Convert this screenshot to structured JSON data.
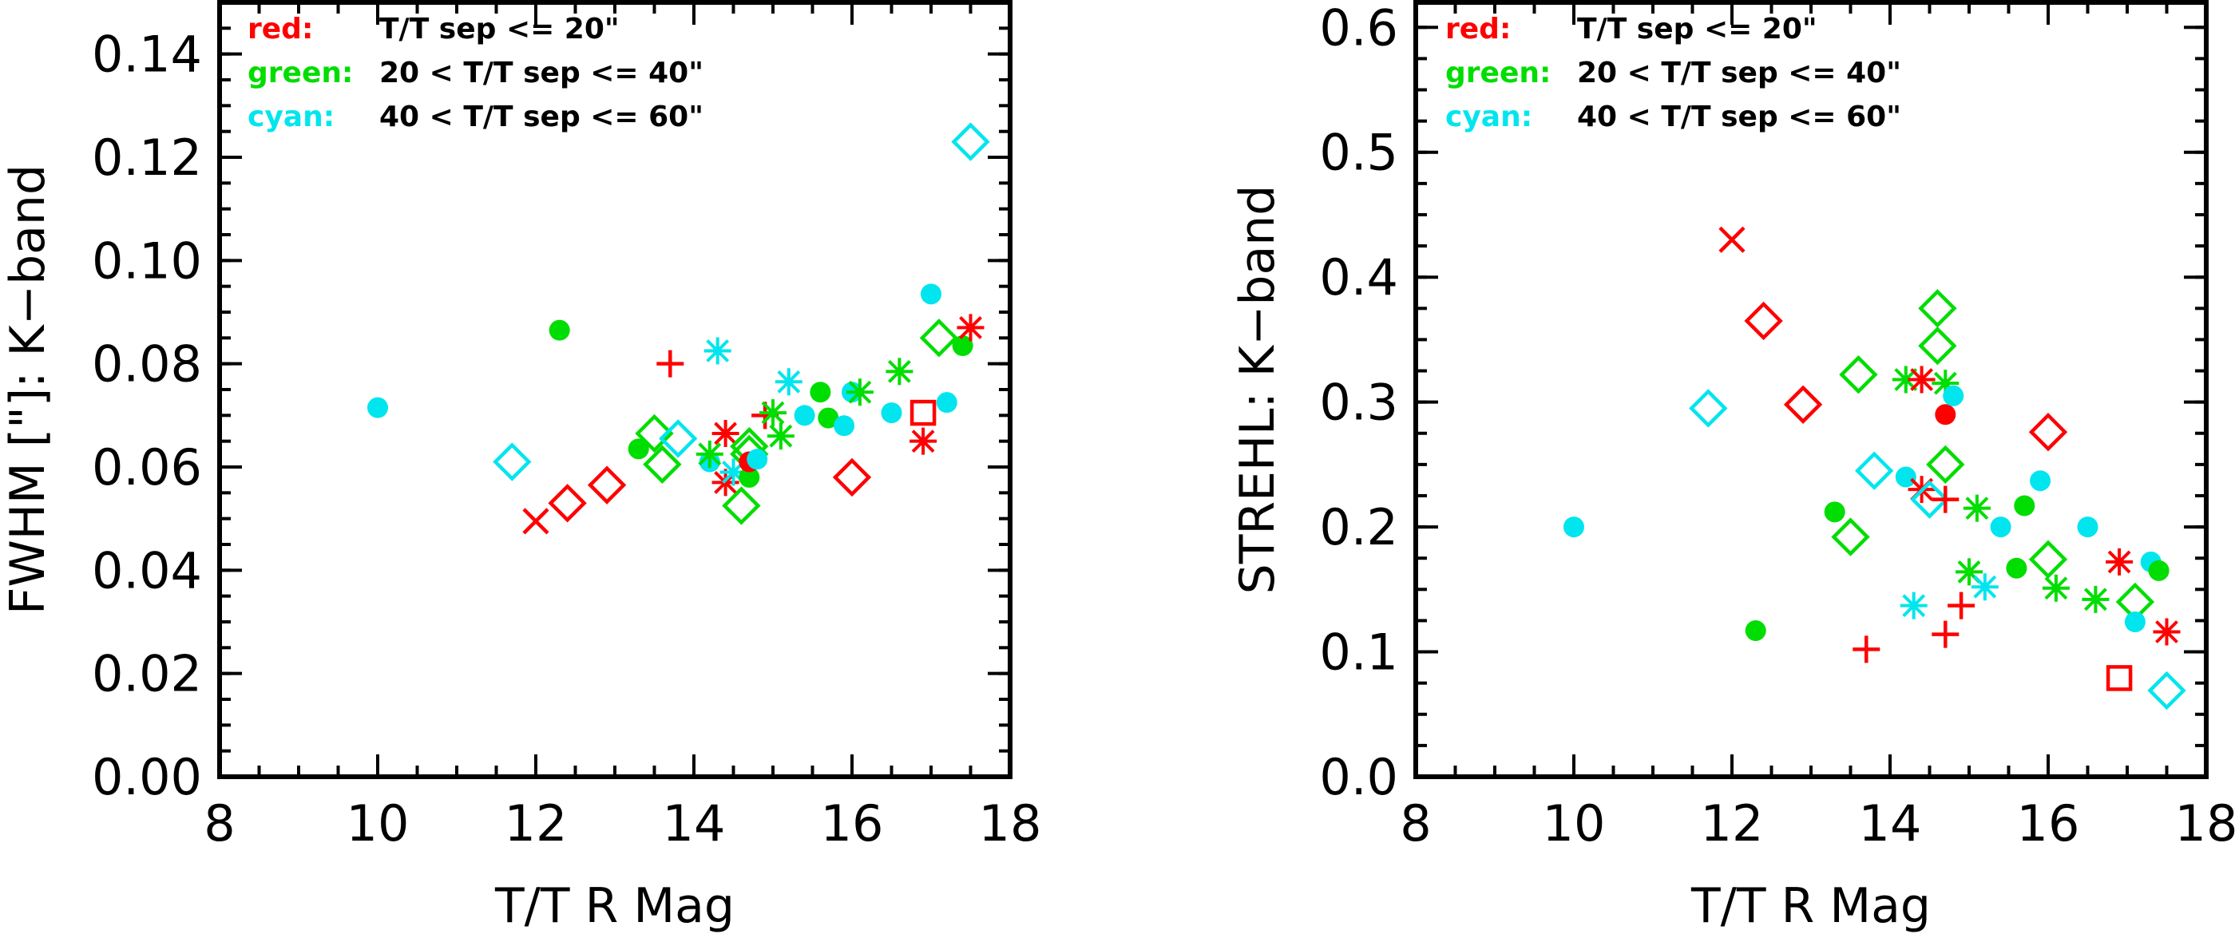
{
  "colors": {
    "red": "#ff0000",
    "green": "#00dd00",
    "cyan": "#00e5ee"
  },
  "legend": [
    {
      "key": "red:",
      "text": "T/T sep <= 20\"",
      "color": "red"
    },
    {
      "key": "green:",
      "text": "20 < T/T sep <= 40\"",
      "color": "green"
    },
    {
      "key": "cyan:",
      "text": "40 < T/T sep <= 60\"",
      "color": "cyan"
    }
  ],
  "chart_data": [
    {
      "type": "scatter",
      "xlabel": "T/T R Mag",
      "ylabel": "FWHM [\"]: K−band",
      "xlim": [
        8,
        18
      ],
      "ylim": [
        0,
        0.15
      ],
      "xticks": [
        "8",
        "10",
        "12",
        "14",
        "16",
        "18"
      ],
      "yticks": [
        "0.00",
        "0.02",
        "0.04",
        "0.06",
        "0.08",
        "0.10",
        "0.12",
        "0.14"
      ],
      "legend_position": "top-left",
      "points": [
        {
          "x": 10.0,
          "y": 0.0715,
          "c": "cyan",
          "m": "circle"
        },
        {
          "x": 11.7,
          "y": 0.061,
          "c": "cyan",
          "m": "diamond"
        },
        {
          "x": 12.0,
          "y": 0.0495,
          "c": "red",
          "m": "x"
        },
        {
          "x": 12.3,
          "y": 0.0865,
          "c": "green",
          "m": "circle"
        },
        {
          "x": 12.4,
          "y": 0.053,
          "c": "red",
          "m": "diamond"
        },
        {
          "x": 12.9,
          "y": 0.0565,
          "c": "red",
          "m": "diamond"
        },
        {
          "x": 13.3,
          "y": 0.0635,
          "c": "green",
          "m": "circle"
        },
        {
          "x": 13.5,
          "y": 0.0665,
          "c": "green",
          "m": "diamond"
        },
        {
          "x": 13.6,
          "y": 0.0605,
          "c": "green",
          "m": "diamond"
        },
        {
          "x": 13.7,
          "y": 0.08,
          "c": "red",
          "m": "plus"
        },
        {
          "x": 13.8,
          "y": 0.0655,
          "c": "cyan",
          "m": "diamond"
        },
        {
          "x": 14.2,
          "y": 0.061,
          "c": "cyan",
          "m": "circle"
        },
        {
          "x": 14.2,
          "y": 0.0625,
          "c": "green",
          "m": "asterisk"
        },
        {
          "x": 14.3,
          "y": 0.0825,
          "c": "cyan",
          "m": "asterisk"
        },
        {
          "x": 14.4,
          "y": 0.0665,
          "c": "red",
          "m": "asterisk"
        },
        {
          "x": 14.4,
          "y": 0.057,
          "c": "red",
          "m": "asterisk"
        },
        {
          "x": 14.5,
          "y": 0.059,
          "c": "cyan",
          "m": "asterisk"
        },
        {
          "x": 14.6,
          "y": 0.0525,
          "c": "green",
          "m": "diamond"
        },
        {
          "x": 14.7,
          "y": 0.0625,
          "c": "green",
          "m": "diamond"
        },
        {
          "x": 14.7,
          "y": 0.064,
          "c": "green",
          "m": "diamond"
        },
        {
          "x": 14.7,
          "y": 0.058,
          "c": "green",
          "m": "circle"
        },
        {
          "x": 14.7,
          "y": 0.061,
          "c": "red",
          "m": "circle"
        },
        {
          "x": 14.8,
          "y": 0.0615,
          "c": "cyan",
          "m": "circle"
        },
        {
          "x": 14.9,
          "y": 0.07,
          "c": "red",
          "m": "plus"
        },
        {
          "x": 15.0,
          "y": 0.0705,
          "c": "green",
          "m": "asterisk"
        },
        {
          "x": 15.1,
          "y": 0.066,
          "c": "green",
          "m": "asterisk"
        },
        {
          "x": 15.2,
          "y": 0.0765,
          "c": "cyan",
          "m": "asterisk"
        },
        {
          "x": 15.4,
          "y": 0.07,
          "c": "cyan",
          "m": "circle"
        },
        {
          "x": 15.6,
          "y": 0.0745,
          "c": "green",
          "m": "circle"
        },
        {
          "x": 15.7,
          "y": 0.0695,
          "c": "green",
          "m": "circle"
        },
        {
          "x": 15.9,
          "y": 0.068,
          "c": "cyan",
          "m": "circle"
        },
        {
          "x": 16.0,
          "y": 0.0745,
          "c": "cyan",
          "m": "circle"
        },
        {
          "x": 16.0,
          "y": 0.058,
          "c": "red",
          "m": "diamond"
        },
        {
          "x": 16.1,
          "y": 0.0745,
          "c": "green",
          "m": "asterisk"
        },
        {
          "x": 16.5,
          "y": 0.0705,
          "c": "cyan",
          "m": "circle"
        },
        {
          "x": 16.6,
          "y": 0.0785,
          "c": "green",
          "m": "asterisk"
        },
        {
          "x": 16.9,
          "y": 0.0705,
          "c": "red",
          "m": "square"
        },
        {
          "x": 16.9,
          "y": 0.065,
          "c": "red",
          "m": "asterisk"
        },
        {
          "x": 17.0,
          "y": 0.0935,
          "c": "cyan",
          "m": "circle"
        },
        {
          "x": 17.1,
          "y": 0.085,
          "c": "green",
          "m": "diamond"
        },
        {
          "x": 17.2,
          "y": 0.0725,
          "c": "cyan",
          "m": "circle"
        },
        {
          "x": 17.4,
          "y": 0.0835,
          "c": "green",
          "m": "circle"
        },
        {
          "x": 17.5,
          "y": 0.087,
          "c": "red",
          "m": "asterisk"
        },
        {
          "x": 17.5,
          "y": 0.123,
          "c": "cyan",
          "m": "diamond"
        }
      ]
    },
    {
      "type": "scatter",
      "xlabel": "T/T R Mag",
      "ylabel": "STREHL: K−band",
      "xlim": [
        8,
        18
      ],
      "ylim": [
        0,
        0.62
      ],
      "xticks": [
        "8",
        "10",
        "12",
        "14",
        "16",
        "18"
      ],
      "yticks": [
        "0.0",
        "0.1",
        "0.2",
        "0.3",
        "0.4",
        "0.5",
        "0.6"
      ],
      "legend_position": "top-left",
      "points": [
        {
          "x": 10.0,
          "y": 0.2,
          "c": "cyan",
          "m": "circle"
        },
        {
          "x": 11.7,
          "y": 0.295,
          "c": "cyan",
          "m": "diamond"
        },
        {
          "x": 12.0,
          "y": 0.43,
          "c": "red",
          "m": "x"
        },
        {
          "x": 12.3,
          "y": 0.117,
          "c": "green",
          "m": "circle"
        },
        {
          "x": 12.4,
          "y": 0.365,
          "c": "red",
          "m": "diamond"
        },
        {
          "x": 12.9,
          "y": 0.298,
          "c": "red",
          "m": "diamond"
        },
        {
          "x": 13.3,
          "y": 0.212,
          "c": "green",
          "m": "circle"
        },
        {
          "x": 13.5,
          "y": 0.192,
          "c": "green",
          "m": "diamond"
        },
        {
          "x": 13.6,
          "y": 0.322,
          "c": "green",
          "m": "diamond"
        },
        {
          "x": 13.7,
          "y": 0.102,
          "c": "red",
          "m": "plus"
        },
        {
          "x": 13.8,
          "y": 0.245,
          "c": "cyan",
          "m": "diamond"
        },
        {
          "x": 14.2,
          "y": 0.24,
          "c": "cyan",
          "m": "circle"
        },
        {
          "x": 14.2,
          "y": 0.318,
          "c": "green",
          "m": "asterisk"
        },
        {
          "x": 14.3,
          "y": 0.137,
          "c": "cyan",
          "m": "asterisk"
        },
        {
          "x": 14.4,
          "y": 0.318,
          "c": "red",
          "m": "asterisk"
        },
        {
          "x": 14.4,
          "y": 0.23,
          "c": "red",
          "m": "asterisk"
        },
        {
          "x": 14.5,
          "y": 0.222,
          "c": "cyan",
          "m": "diamond"
        },
        {
          "x": 14.6,
          "y": 0.375,
          "c": "green",
          "m": "diamond"
        },
        {
          "x": 14.6,
          "y": 0.345,
          "c": "green",
          "m": "diamond"
        },
        {
          "x": 14.7,
          "y": 0.25,
          "c": "green",
          "m": "diamond"
        },
        {
          "x": 14.7,
          "y": 0.315,
          "c": "green",
          "m": "asterisk"
        },
        {
          "x": 14.7,
          "y": 0.29,
          "c": "red",
          "m": "circle"
        },
        {
          "x": 14.7,
          "y": 0.222,
          "c": "red",
          "m": "plus"
        },
        {
          "x": 14.7,
          "y": 0.114,
          "c": "red",
          "m": "plus"
        },
        {
          "x": 14.8,
          "y": 0.305,
          "c": "cyan",
          "m": "circle"
        },
        {
          "x": 14.9,
          "y": 0.137,
          "c": "red",
          "m": "plus"
        },
        {
          "x": 15.0,
          "y": 0.164,
          "c": "green",
          "m": "asterisk"
        },
        {
          "x": 15.1,
          "y": 0.215,
          "c": "green",
          "m": "asterisk"
        },
        {
          "x": 15.2,
          "y": 0.152,
          "c": "cyan",
          "m": "asterisk"
        },
        {
          "x": 15.4,
          "y": 0.2,
          "c": "cyan",
          "m": "circle"
        },
        {
          "x": 15.6,
          "y": 0.167,
          "c": "green",
          "m": "circle"
        },
        {
          "x": 15.7,
          "y": 0.217,
          "c": "green",
          "m": "circle"
        },
        {
          "x": 15.9,
          "y": 0.237,
          "c": "cyan",
          "m": "circle"
        },
        {
          "x": 16.0,
          "y": 0.276,
          "c": "red",
          "m": "diamond"
        },
        {
          "x": 16.0,
          "y": 0.174,
          "c": "green",
          "m": "diamond"
        },
        {
          "x": 16.1,
          "y": 0.151,
          "c": "green",
          "m": "asterisk"
        },
        {
          "x": 16.5,
          "y": 0.2,
          "c": "cyan",
          "m": "circle"
        },
        {
          "x": 16.6,
          "y": 0.142,
          "c": "green",
          "m": "asterisk"
        },
        {
          "x": 16.9,
          "y": 0.079,
          "c": "red",
          "m": "square"
        },
        {
          "x": 16.9,
          "y": 0.172,
          "c": "red",
          "m": "asterisk"
        },
        {
          "x": 17.1,
          "y": 0.14,
          "c": "green",
          "m": "diamond"
        },
        {
          "x": 17.1,
          "y": 0.124,
          "c": "cyan",
          "m": "circle"
        },
        {
          "x": 17.3,
          "y": 0.172,
          "c": "cyan",
          "m": "circle"
        },
        {
          "x": 17.4,
          "y": 0.165,
          "c": "green",
          "m": "circle"
        },
        {
          "x": 17.5,
          "y": 0.116,
          "c": "red",
          "m": "asterisk"
        },
        {
          "x": 17.5,
          "y": 0.069,
          "c": "cyan",
          "m": "diamond"
        }
      ]
    }
  ]
}
